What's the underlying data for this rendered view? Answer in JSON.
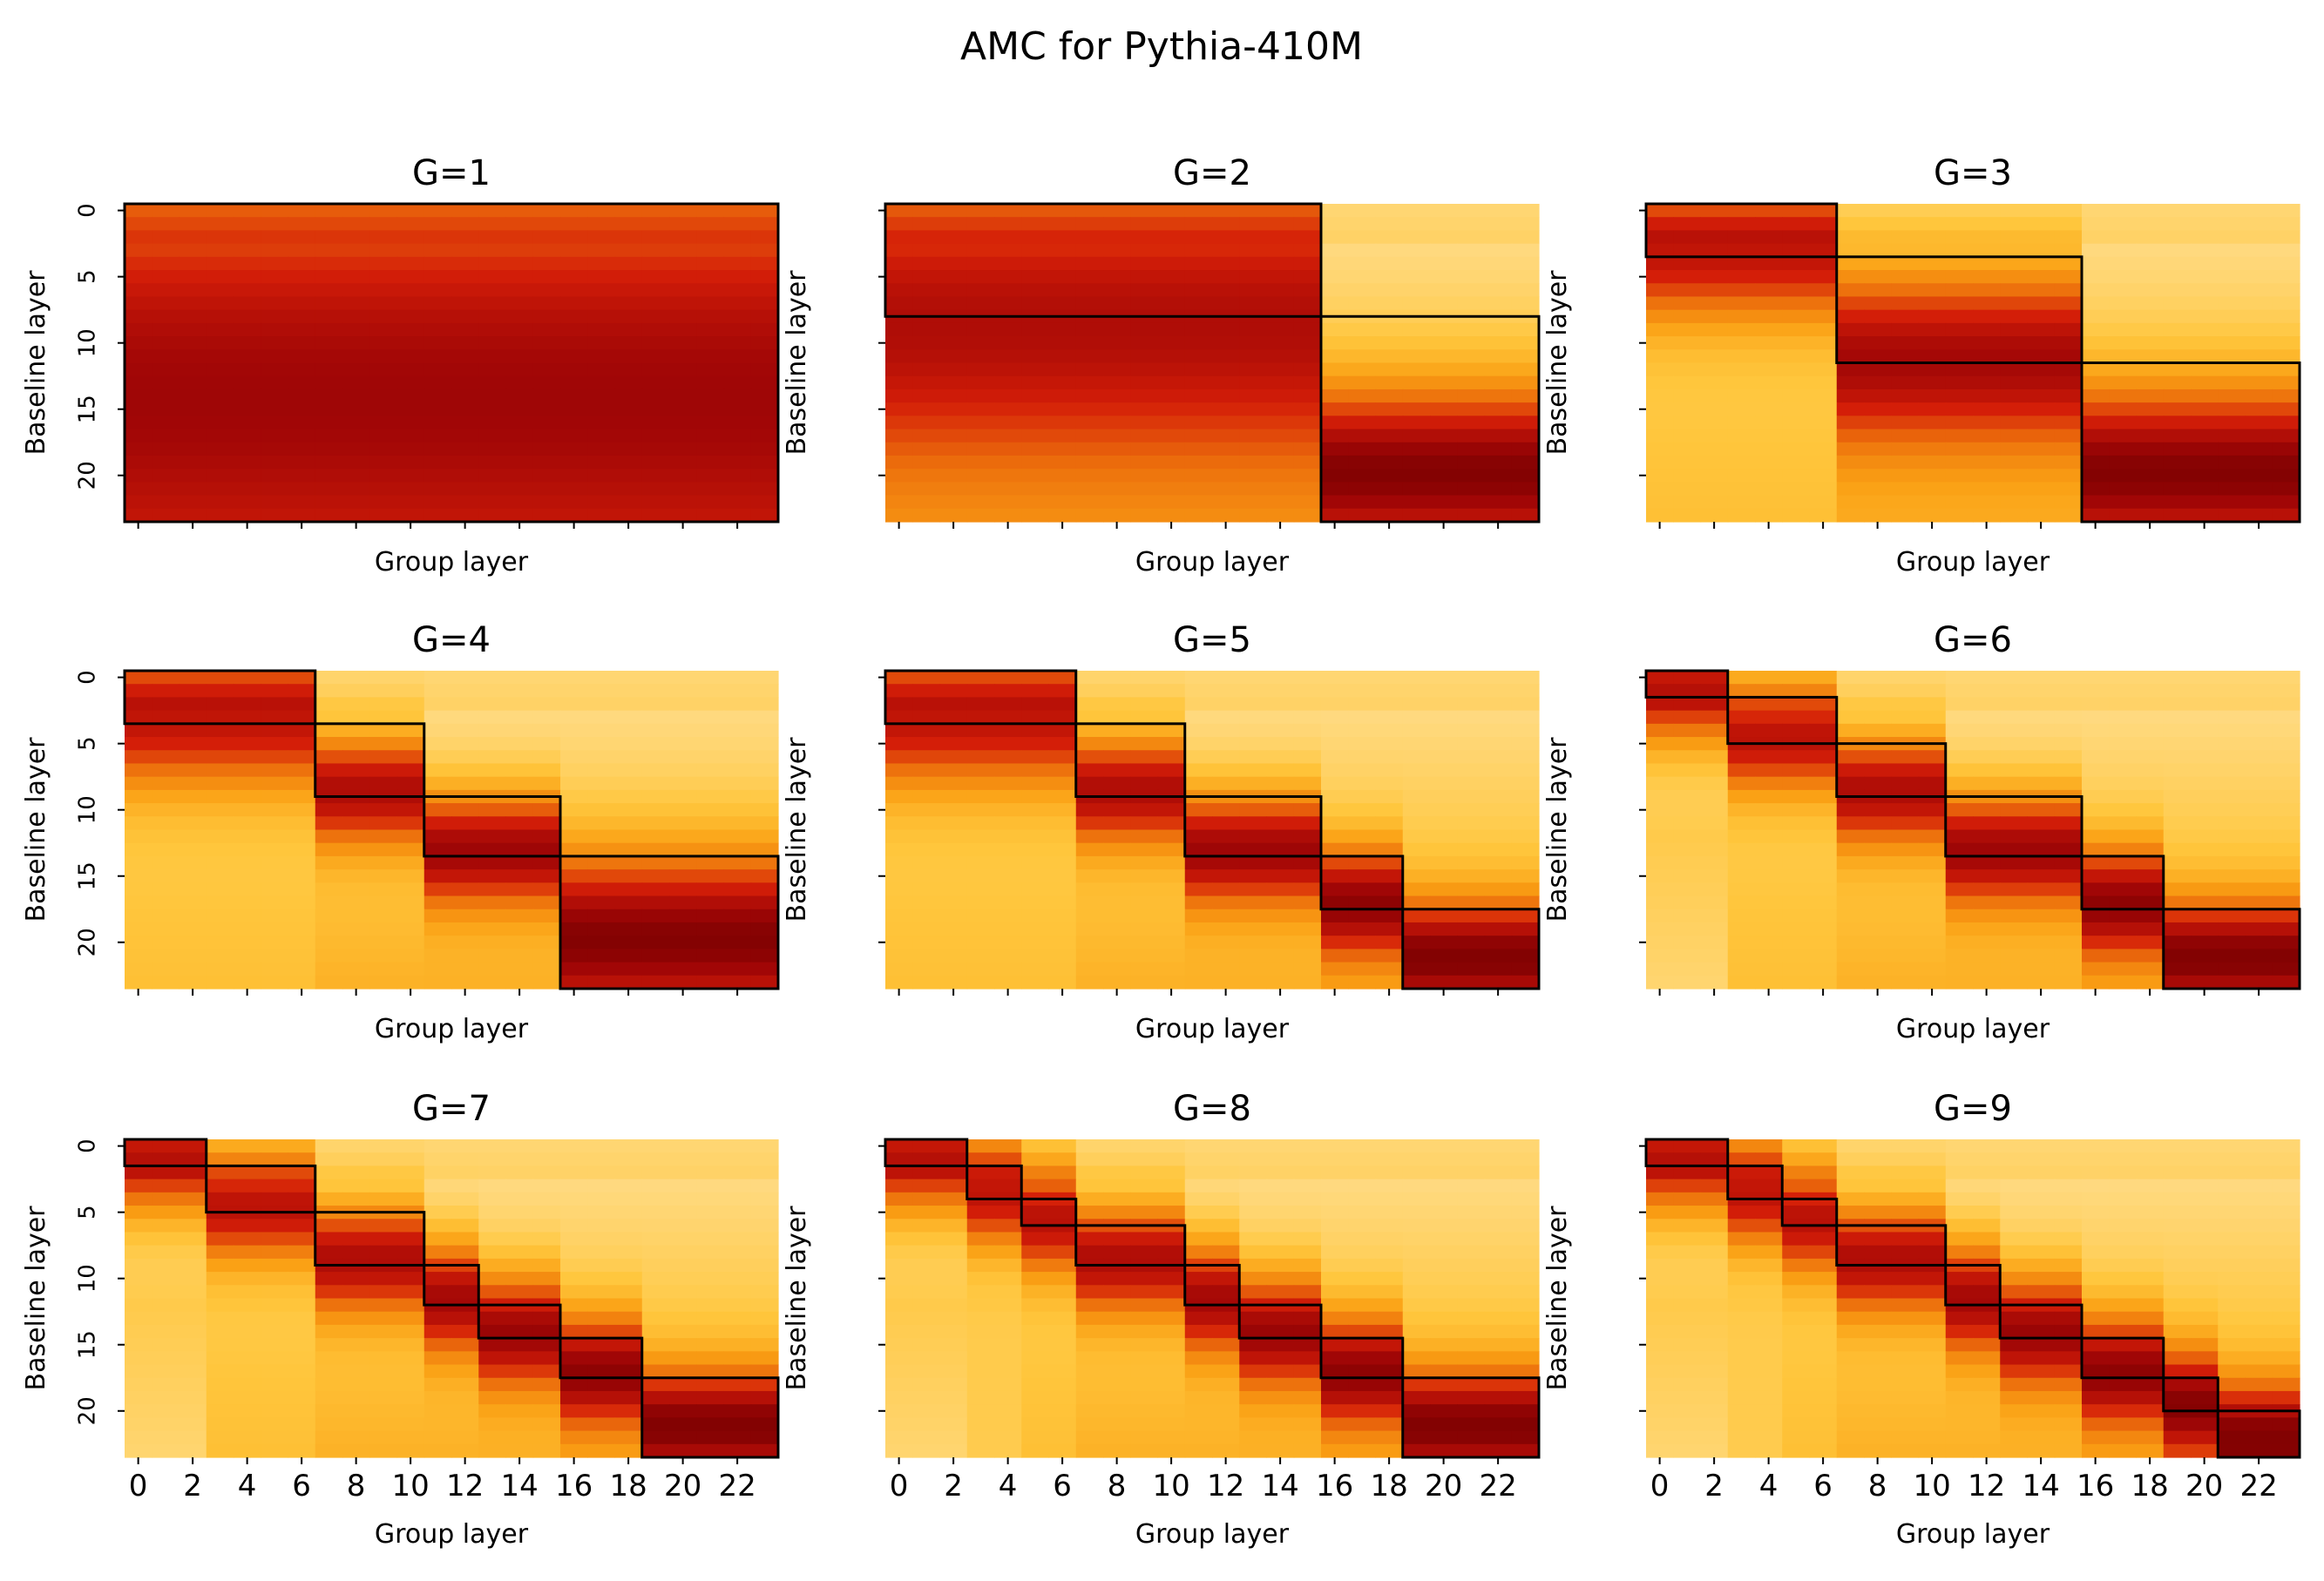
{
  "figure": {
    "title": "AMC for Pythia-410M"
  },
  "chart_data": {
    "type": "heatmap",
    "title": "AMC for Pythia-410M",
    "layers": 24,
    "xlabel": "Group layer",
    "ylabel": "Baseline layer",
    "x_ticks": [
      0,
      2,
      4,
      6,
      8,
      10,
      12,
      14,
      16,
      18,
      20,
      22
    ],
    "y_ticks": [
      0,
      5,
      10,
      15,
      20
    ],
    "colormap": "hot_r",
    "grid": false,
    "panels": [
      {
        "label": "G=1",
        "groups": [
          [
            0,
            23
          ]
        ]
      },
      {
        "label": "G=2",
        "groups": [
          [
            0,
            15
          ],
          [
            16,
            23
          ]
        ]
      },
      {
        "label": "G=3",
        "groups": [
          [
            0,
            6
          ],
          [
            7,
            15
          ],
          [
            16,
            23
          ]
        ]
      },
      {
        "label": "G=4",
        "groups": [
          [
            0,
            6
          ],
          [
            7,
            10
          ],
          [
            11,
            15
          ],
          [
            16,
            23
          ]
        ]
      },
      {
        "label": "G=5",
        "groups": [
          [
            0,
            6
          ],
          [
            7,
            10
          ],
          [
            11,
            15
          ],
          [
            16,
            18
          ],
          [
            19,
            23
          ]
        ]
      },
      {
        "label": "G=6",
        "groups": [
          [
            0,
            2
          ],
          [
            3,
            6
          ],
          [
            7,
            10
          ],
          [
            11,
            15
          ],
          [
            16,
            18
          ],
          [
            19,
            23
          ]
        ]
      },
      {
        "label": "G=7",
        "groups": [
          [
            0,
            2
          ],
          [
            3,
            6
          ],
          [
            7,
            10
          ],
          [
            11,
            12
          ],
          [
            13,
            15
          ],
          [
            16,
            18
          ],
          [
            19,
            23
          ]
        ]
      },
      {
        "label": "G=8",
        "groups": [
          [
            0,
            2
          ],
          [
            3,
            4
          ],
          [
            5,
            6
          ],
          [
            7,
            10
          ],
          [
            11,
            12
          ],
          [
            13,
            15
          ],
          [
            16,
            18
          ],
          [
            19,
            23
          ]
        ]
      },
      {
        "label": "G=9",
        "groups": [
          [
            0,
            2
          ],
          [
            3,
            4
          ],
          [
            5,
            6
          ],
          [
            7,
            10
          ],
          [
            11,
            12
          ],
          [
            13,
            15
          ],
          [
            16,
            18
          ],
          [
            19,
            20
          ],
          [
            21,
            23
          ]
        ]
      }
    ]
  }
}
